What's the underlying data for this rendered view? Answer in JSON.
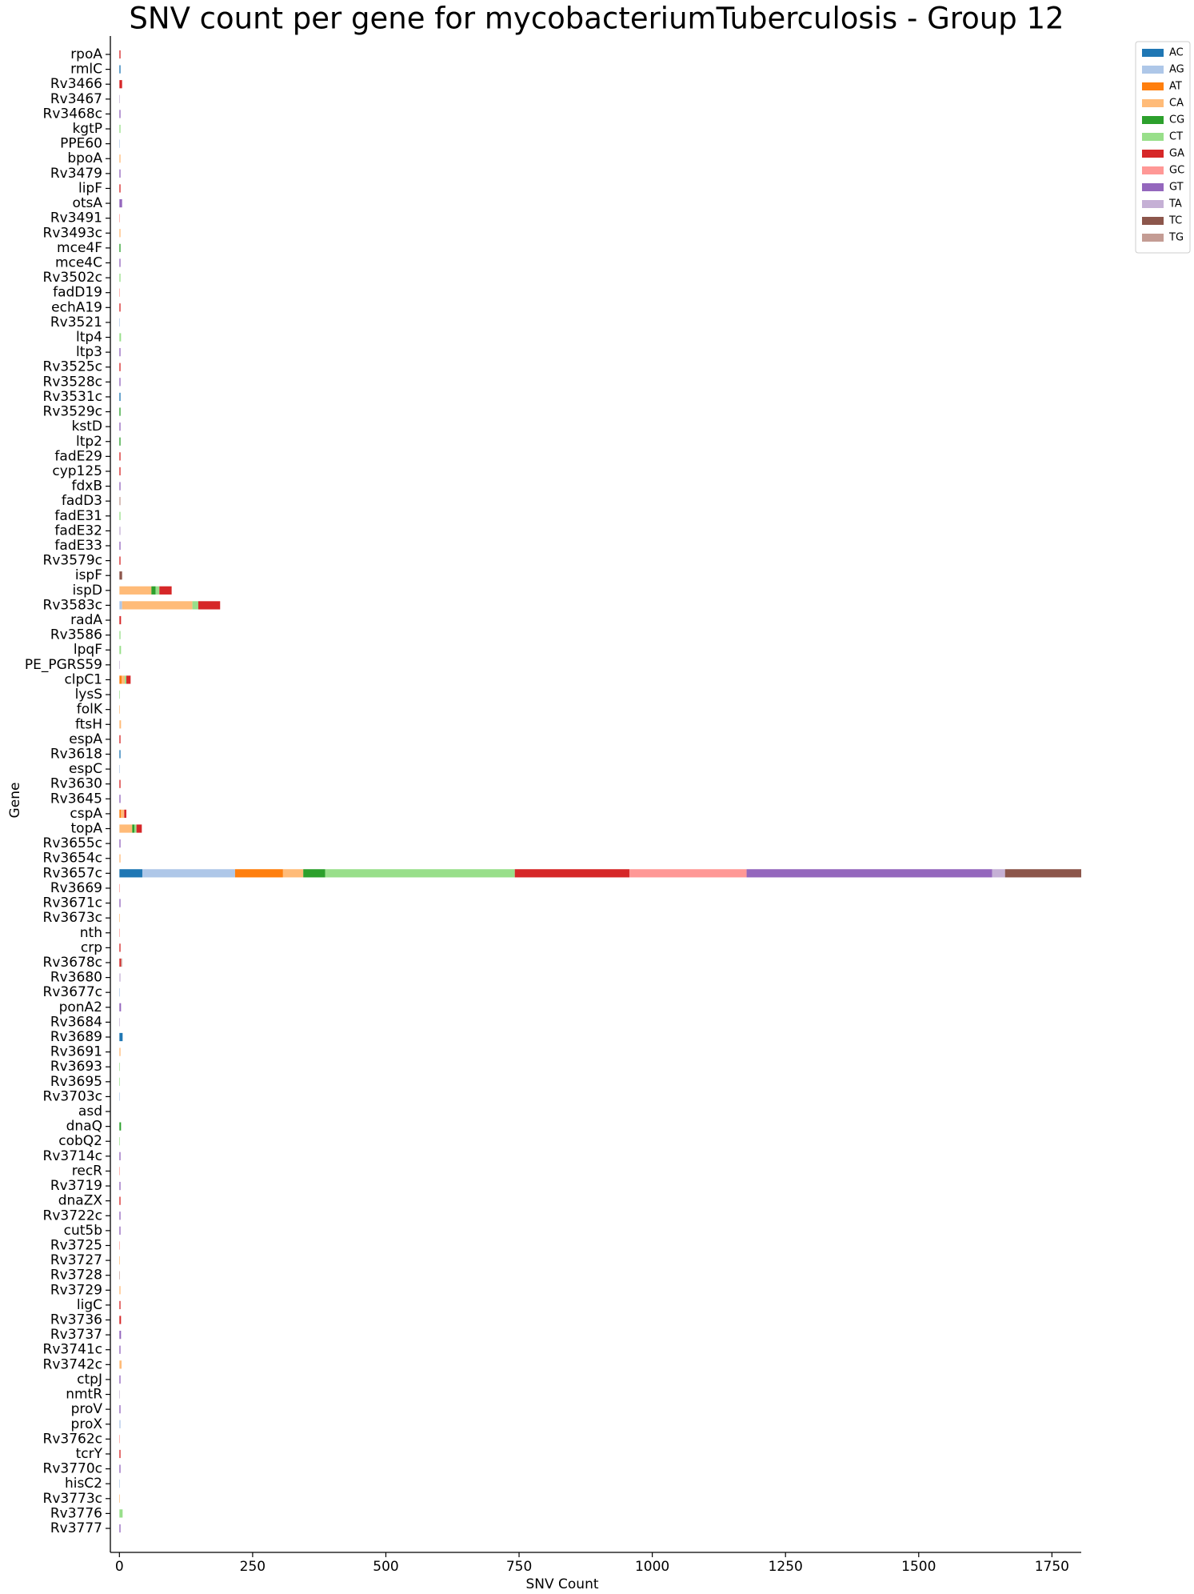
{
  "chart_data": {
    "type": "stacked-barh",
    "title": "SNV count per gene for mycobacteriumTuberculosis - Group 12",
    "x_label": "SNV Count",
    "y_label": "Gene",
    "xlim": [
      -17,
      1805
    ],
    "xticks": [
      0,
      250,
      500,
      750,
      1000,
      1250,
      1500,
      1750
    ],
    "legend": "outside upper right",
    "categories": [
      "rpoA",
      "rmlC",
      "Rv3466",
      "Rv3467",
      "Rv3468c",
      "kgtP",
      "PPE60",
      "bpoA",
      "Rv3479",
      "lipF",
      "otsA",
      "Rv3491",
      "Rv3493c",
      "mce4F",
      "mce4C",
      "Rv3502c",
      "fadD19",
      "echA19",
      "Rv3521",
      "ltp4",
      "ltp3",
      "Rv3525c",
      "Rv3528c",
      "Rv3531c",
      "Rv3529c",
      "kstD",
      "ltp2",
      "fadE29",
      "cyp125",
      "fdxB",
      "fadD3",
      "fadE31",
      "fadE32",
      "fadE33",
      "Rv3579c",
      "ispF",
      "ispD",
      "Rv3583c",
      "radA",
      "Rv3586",
      "lpqF",
      "PE_PGRS59",
      "clpC1",
      "lysS",
      "folK",
      "ftsH",
      "espA",
      "Rv3618",
      "espC",
      "Rv3630",
      "Rv3645",
      "cspA",
      "topA",
      "Rv3655c",
      "Rv3654c",
      "Rv3657c",
      "Rv3669",
      "Rv3671c",
      "Rv3673c",
      "nth",
      "crp",
      "Rv3678c",
      "Rv3680",
      "Rv3677c",
      "ponA2",
      "Rv3684",
      "Rv3689",
      "Rv3691",
      "Rv3693",
      "Rv3695",
      "Rv3703c",
      "asd",
      "dnaQ",
      "cobQ2",
      "Rv3714c",
      "recR",
      "Rv3719",
      "dnaZX",
      "Rv3722c",
      "cut5b",
      "Rv3725",
      "Rv3727",
      "Rv3728",
      "Rv3729",
      "ligC",
      "Rv3736",
      "Rv3737",
      "Rv3741c",
      "Rv3742c",
      "ctpJ",
      "nmtR",
      "proV",
      "proX",
      "Rv3762c",
      "tcrY",
      "Rv3770c",
      "hisC2",
      "Rv3773c",
      "Rv3776",
      "Rv3777"
    ],
    "series": [
      {
        "name": "AC",
        "color": "#1f77b4",
        "values": [
          0,
          2,
          0,
          0,
          0,
          0,
          0,
          0,
          0,
          0,
          0,
          0,
          0,
          0,
          0,
          0,
          0,
          0,
          0,
          0,
          0,
          0,
          0,
          2,
          0,
          0,
          0,
          0,
          0,
          0,
          0,
          0,
          0,
          0,
          0,
          0,
          0,
          0,
          0,
          0,
          0,
          0,
          0,
          0,
          0,
          0,
          0,
          2,
          0,
          0,
          0,
          0,
          0,
          0,
          0,
          43,
          0,
          0,
          0,
          0,
          0,
          0,
          0,
          0,
          0,
          0,
          6,
          0,
          0,
          0,
          0,
          0,
          0,
          0,
          0,
          0,
          0,
          0,
          0,
          0,
          0,
          0,
          0,
          0,
          0,
          0,
          0,
          0,
          0,
          0,
          0,
          0,
          0,
          0,
          0,
          0,
          0,
          0,
          0,
          0
        ]
      },
      {
        "name": "AG",
        "color": "#aec7e8",
        "values": [
          0,
          0,
          0,
          0,
          0,
          0,
          1,
          0,
          0,
          0,
          0,
          0,
          0,
          0,
          0,
          0,
          0,
          0,
          1,
          0,
          0,
          0,
          0,
          0,
          0,
          0,
          0,
          0,
          0,
          0,
          0,
          0,
          0,
          0,
          0,
          0,
          0,
          5,
          0,
          0,
          0,
          0,
          0,
          0,
          0,
          0,
          0,
          0,
          1,
          0,
          0,
          0,
          0,
          0,
          0,
          174,
          0,
          0,
          0,
          0,
          0,
          0,
          0,
          1,
          0,
          0,
          0,
          0,
          0,
          0,
          1,
          0,
          0,
          0,
          0,
          0,
          0,
          0,
          0,
          0,
          0,
          0,
          0,
          0,
          0,
          0,
          0,
          0,
          0,
          0,
          0,
          0,
          2,
          0,
          0,
          0,
          1,
          0,
          0,
          0
        ]
      },
      {
        "name": "AT",
        "color": "#ff7f0e",
        "values": [
          0,
          0,
          0,
          0,
          0,
          0,
          0,
          0,
          0,
          0,
          0,
          0,
          0,
          0,
          0,
          0,
          0,
          0,
          0,
          0,
          0,
          0,
          0,
          0,
          0,
          0,
          0,
          0,
          0,
          0,
          0,
          0,
          0,
          0,
          0,
          0,
          0,
          0,
          0,
          0,
          0,
          0,
          4,
          0,
          0,
          0,
          0,
          0,
          0,
          0,
          0,
          3,
          0,
          0,
          0,
          90,
          0,
          0,
          0,
          0,
          0,
          0,
          0,
          0,
          0,
          0,
          0,
          0,
          0,
          0,
          0,
          0,
          0,
          0,
          0,
          0,
          0,
          0,
          0,
          0,
          0,
          0,
          0,
          0,
          0,
          0,
          0,
          0,
          0,
          0,
          0,
          0,
          0,
          0,
          0,
          0,
          0,
          0,
          0,
          0
        ]
      },
      {
        "name": "CA",
        "color": "#ffbb78",
        "values": [
          0,
          0,
          0,
          0,
          0,
          0,
          0,
          2,
          0,
          0,
          0,
          0,
          2,
          0,
          0,
          0,
          0,
          0,
          0,
          0,
          0,
          0,
          0,
          0,
          0,
          0,
          0,
          0,
          0,
          0,
          0,
          0,
          0,
          0,
          0,
          0,
          60,
          132,
          0,
          0,
          0,
          0,
          6,
          0,
          1,
          3,
          0,
          0,
          0,
          0,
          0,
          6,
          24,
          0,
          2,
          38,
          0,
          0,
          1,
          0,
          0,
          0,
          0,
          0,
          0,
          0,
          0,
          2,
          0,
          0,
          0,
          0,
          0,
          0,
          0,
          0,
          0,
          0,
          0,
          0,
          0,
          1,
          0,
          2,
          0,
          0,
          0,
          0,
          4,
          0,
          0,
          0,
          0,
          0,
          0,
          0,
          0,
          1,
          0,
          0
        ]
      },
      {
        "name": "CG",
        "color": "#2ca02c",
        "values": [
          0,
          0,
          0,
          0,
          0,
          0,
          0,
          0,
          0,
          0,
          0,
          0,
          0,
          2,
          0,
          0,
          0,
          0,
          0,
          0,
          0,
          0,
          0,
          0,
          2,
          0,
          2,
          0,
          0,
          0,
          0,
          0,
          0,
          0,
          0,
          0,
          8,
          0,
          0,
          0,
          0,
          0,
          0,
          0,
          0,
          0,
          0,
          0,
          0,
          0,
          0,
          0,
          4,
          0,
          0,
          41,
          0,
          0,
          0,
          0,
          0,
          0,
          0,
          0,
          0,
          0,
          0,
          0,
          0,
          0,
          0,
          0,
          3,
          0,
          0,
          0,
          0,
          0,
          0,
          0,
          0,
          0,
          0,
          0,
          0,
          0,
          0,
          0,
          0,
          0,
          0,
          0,
          0,
          0,
          0,
          0,
          0,
          0,
          0,
          0
        ]
      },
      {
        "name": "CT",
        "color": "#98df8a",
        "values": [
          0,
          0,
          0,
          0,
          0,
          2,
          0,
          0,
          0,
          0,
          0,
          0,
          0,
          0,
          0,
          2,
          0,
          0,
          0,
          3,
          0,
          0,
          0,
          0,
          0,
          0,
          0,
          0,
          0,
          0,
          0,
          2,
          0,
          0,
          0,
          0,
          7,
          11,
          0,
          2,
          3,
          0,
          3,
          1,
          0,
          0,
          0,
          0,
          0,
          0,
          0,
          0,
          4,
          0,
          0,
          356,
          0,
          0,
          0,
          0,
          0,
          0,
          0,
          0,
          0,
          0,
          0,
          0,
          1,
          1,
          0,
          0,
          0,
          1,
          0,
          0,
          0,
          0,
          0,
          0,
          0,
          0,
          0,
          0,
          0,
          0,
          0,
          0,
          0,
          0,
          0,
          0,
          0,
          0,
          0,
          0,
          0,
          0,
          6,
          0
        ]
      },
      {
        "name": "GA",
        "color": "#d62728",
        "values": [
          2,
          0,
          5,
          0,
          0,
          0,
          0,
          0,
          0,
          2,
          0,
          0,
          0,
          0,
          0,
          0,
          0,
          2,
          0,
          0,
          0,
          2,
          0,
          0,
          0,
          0,
          0,
          2,
          2,
          0,
          0,
          0,
          0,
          0,
          2,
          0,
          23,
          41,
          3,
          0,
          0,
          0,
          8,
          0,
          0,
          0,
          2,
          0,
          0,
          2,
          0,
          4,
          10,
          0,
          0,
          215,
          0,
          0,
          0,
          0,
          2,
          3,
          0,
          0,
          0,
          0,
          0,
          0,
          0,
          0,
          0,
          0,
          0,
          0,
          0,
          0,
          0,
          2,
          0,
          0,
          0,
          0,
          0,
          0,
          2,
          3,
          0,
          0,
          0,
          0,
          0,
          0,
          0,
          0,
          2,
          0,
          0,
          0,
          0,
          0
        ]
      },
      {
        "name": "GC",
        "color": "#ff9896",
        "values": [
          0,
          0,
          0,
          0,
          0,
          0,
          0,
          0,
          0,
          0,
          0,
          1,
          0,
          0,
          0,
          0,
          1,
          0,
          0,
          0,
          0,
          0,
          0,
          0,
          0,
          0,
          0,
          0,
          0,
          0,
          0,
          0,
          0,
          0,
          0,
          0,
          0,
          0,
          0,
          0,
          0,
          0,
          0,
          0,
          0,
          0,
          0,
          0,
          0,
          0,
          0,
          0,
          0,
          0,
          0,
          220,
          1,
          0,
          0,
          1,
          0,
          0,
          0,
          0,
          0,
          0,
          0,
          0,
          0,
          0,
          0,
          0,
          0,
          0,
          0,
          1,
          0,
          0,
          0,
          0,
          1,
          0,
          0,
          0,
          0,
          0,
          0,
          0,
          0,
          0,
          0,
          0,
          0,
          1,
          0,
          0,
          0,
          0,
          0,
          0
        ]
      },
      {
        "name": "GT",
        "color": "#9467bd",
        "values": [
          0,
          0,
          0,
          0,
          2,
          0,
          0,
          0,
          2,
          0,
          5,
          0,
          0,
          0,
          2,
          0,
          0,
          0,
          0,
          0,
          2,
          0,
          2,
          0,
          0,
          2,
          0,
          0,
          0,
          2,
          0,
          0,
          0,
          2,
          0,
          0,
          0,
          0,
          0,
          0,
          0,
          0,
          0,
          0,
          0,
          0,
          0,
          0,
          0,
          0,
          2,
          0,
          0,
          2,
          0,
          461,
          0,
          2,
          0,
          0,
          0,
          0,
          0,
          0,
          3,
          0,
          0,
          0,
          0,
          0,
          0,
          0,
          0,
          0,
          2,
          0,
          2,
          0,
          2,
          2,
          0,
          0,
          0,
          0,
          0,
          0,
          3,
          2,
          0,
          2,
          0,
          2,
          0,
          0,
          0,
          2,
          0,
          0,
          0,
          2
        ]
      },
      {
        "name": "TA",
        "color": "#c5b0d5",
        "values": [
          0,
          0,
          0,
          1,
          0,
          0,
          0,
          0,
          0,
          0,
          0,
          0,
          0,
          0,
          0,
          0,
          0,
          0,
          0,
          0,
          0,
          0,
          0,
          0,
          0,
          0,
          0,
          0,
          0,
          0,
          0,
          0,
          2,
          0,
          0,
          0,
          0,
          0,
          0,
          0,
          0,
          1,
          0,
          0,
          0,
          0,
          0,
          0,
          0,
          0,
          0,
          0,
          0,
          0,
          0,
          24,
          0,
          0,
          0,
          0,
          0,
          0,
          2,
          0,
          0,
          1,
          0,
          0,
          0,
          0,
          0,
          0,
          0,
          0,
          0,
          0,
          0,
          0,
          0,
          0,
          0,
          0,
          0,
          0,
          0,
          0,
          0,
          0,
          0,
          0,
          1,
          0,
          0,
          0,
          0,
          0,
          0,
          0,
          0,
          0
        ]
      },
      {
        "name": "TC",
        "color": "#8c564b",
        "values": [
          0,
          0,
          0,
          0,
          0,
          0,
          0,
          0,
          0,
          0,
          0,
          0,
          0,
          0,
          0,
          0,
          0,
          0,
          0,
          0,
          0,
          0,
          0,
          0,
          0,
          0,
          0,
          0,
          0,
          0,
          0,
          0,
          0,
          0,
          0,
          5,
          0,
          0,
          0,
          0,
          0,
          0,
          0,
          0,
          0,
          0,
          0,
          0,
          0,
          0,
          0,
          0,
          0,
          0,
          0,
          143,
          0,
          0,
          0,
          0,
          0,
          0,
          0,
          0,
          0,
          0,
          0,
          0,
          0,
          0,
          0,
          0,
          0,
          0,
          0,
          0,
          0,
          0,
          0,
          0,
          0,
          0,
          0,
          0,
          0,
          0,
          0,
          0,
          0,
          0,
          0,
          0,
          0,
          0,
          0,
          0,
          0,
          0,
          0,
          0
        ]
      },
      {
        "name": "TG",
        "color": "#c49c94",
        "values": [
          0,
          0,
          0,
          0,
          0,
          0,
          0,
          0,
          0,
          0,
          0,
          0,
          0,
          0,
          0,
          0,
          0,
          0,
          0,
          0,
          0,
          0,
          0,
          0,
          0,
          0,
          0,
          0,
          0,
          0,
          2,
          0,
          0,
          0,
          0,
          0,
          0,
          0,
          0,
          0,
          0,
          0,
          0,
          0,
          0,
          0,
          0,
          0,
          0,
          0,
          0,
          0,
          0,
          0,
          0,
          0,
          0,
          0,
          0,
          0,
          0,
          2,
          0,
          0,
          0,
          0,
          0,
          0,
          0,
          0,
          0,
          0,
          0,
          0,
          0,
          0,
          0,
          0,
          0,
          0,
          0,
          0,
          1,
          0,
          0,
          0,
          0,
          0,
          0,
          0,
          0,
          0,
          0,
          0,
          0,
          0,
          0,
          0,
          0,
          0
        ]
      }
    ]
  }
}
